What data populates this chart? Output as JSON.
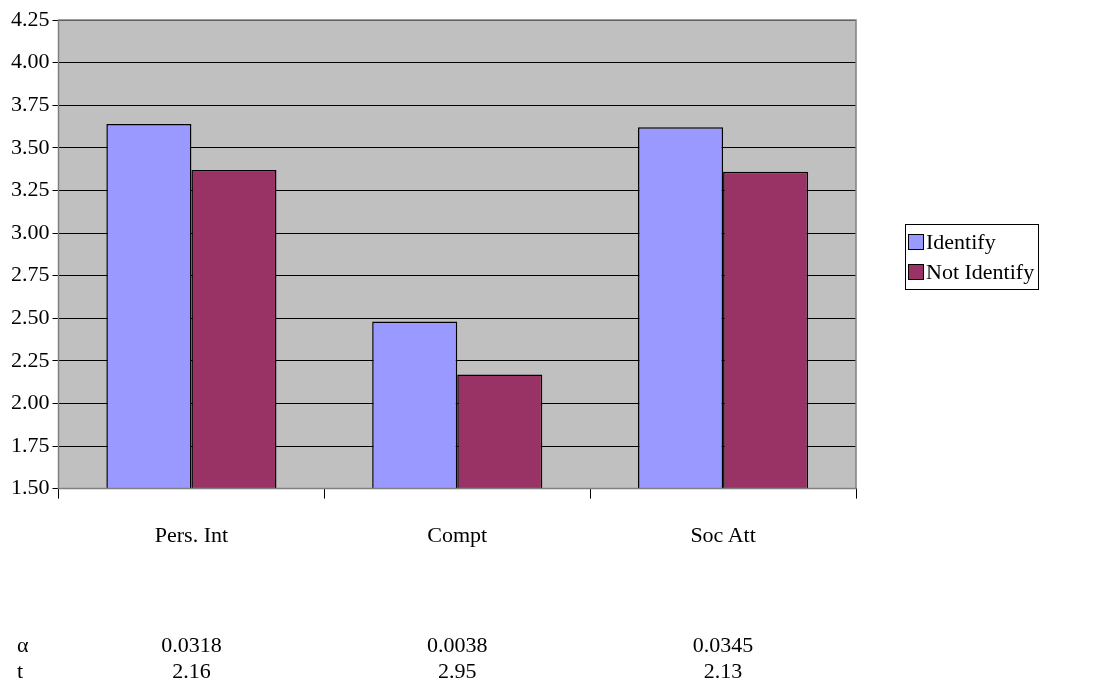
{
  "chart_data": {
    "type": "bar",
    "categories": [
      "Pers. Int",
      "Compt",
      "Soc Att"
    ],
    "series": [
      {
        "name": "Identify",
        "color": "#9999ff",
        "values": [
          3.64,
          2.48,
          3.62
        ]
      },
      {
        "name": "Not Identify",
        "color": "#993366",
        "values": [
          3.37,
          2.17,
          3.36
        ]
      }
    ],
    "ylim": [
      1.5,
      4.25
    ],
    "yticks": [
      {
        "value": 1.5,
        "label": "1.50"
      },
      {
        "value": 1.75,
        "label": "1.75"
      },
      {
        "value": 2,
        "label": "2.00"
      },
      {
        "value": 2.25,
        "label": "2.25"
      },
      {
        "value": 2.5,
        "label": "2.50"
      },
      {
        "value": 2.75,
        "label": "2.75"
      },
      {
        "value": 3,
        "label": "3.00"
      },
      {
        "value": 3.25,
        "label": "3.25"
      },
      {
        "value": 3.5,
        "label": "3.50"
      },
      {
        "value": 3.75,
        "label": "3.75"
      },
      {
        "value": 4,
        "label": "4.00"
      },
      {
        "value": 4.25,
        "label": "4.25"
      }
    ],
    "grid": "y",
    "legend": "right",
    "annotations": [
      "α",
      "0.0318",
      "0.0038",
      "0.0345",
      "t",
      "2.16",
      "2.95",
      "2.13"
    ]
  }
}
